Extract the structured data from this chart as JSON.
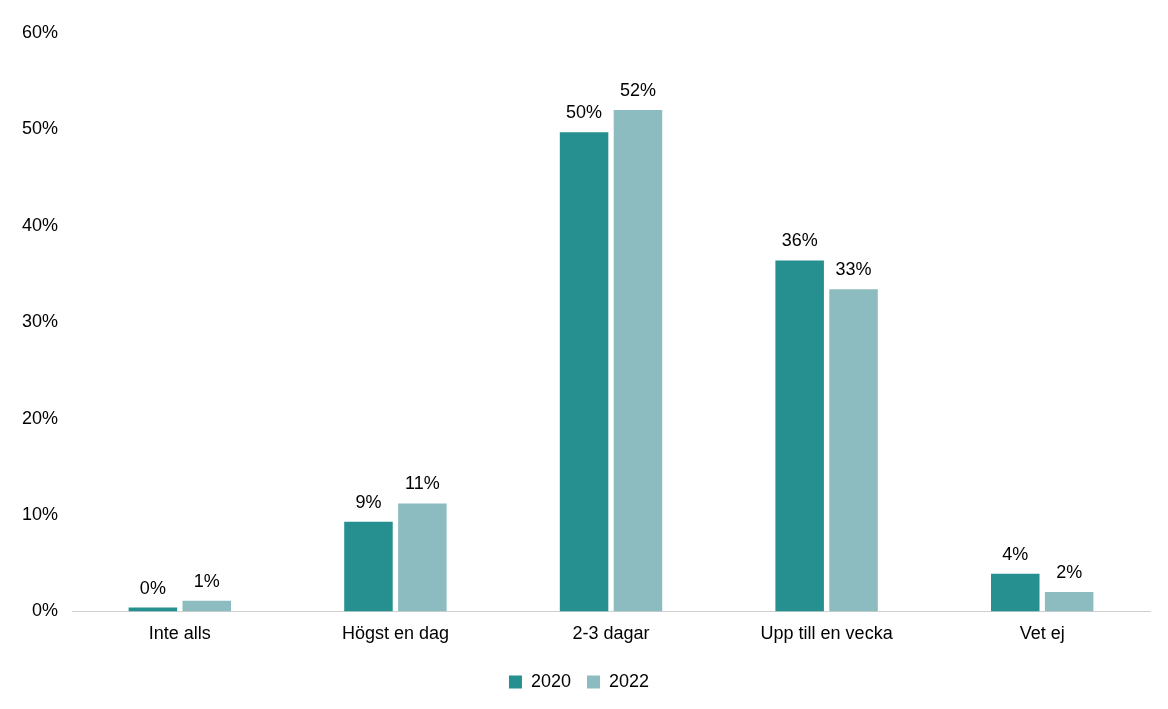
{
  "chart_data": {
    "type": "bar",
    "categories": [
      "Inte alls",
      "Högst en dag",
      "2-3 dagar",
      "Upp till en vecka",
      "Vet ej"
    ],
    "series": [
      {
        "name": "2020",
        "color": "#268f8f",
        "values": [
          0.4,
          9.3,
          49.7,
          36.4,
          3.9
        ],
        "value_labels": [
          "0%",
          "9%",
          "50%",
          "36%",
          "4%"
        ]
      },
      {
        "name": "2022",
        "color": "#8cbcbf",
        "values": [
          1.1,
          11.2,
          52.0,
          33.4,
          2.0
        ],
        "value_labels": [
          "1%",
          "11%",
          "52%",
          "33%",
          "2%"
        ]
      }
    ],
    "ylim": [
      0,
      60
    ],
    "yticks": [
      {
        "value": 0,
        "label": "0%"
      },
      {
        "value": 10,
        "label": "10%"
      },
      {
        "value": 20,
        "label": "20%"
      },
      {
        "value": 30,
        "label": "30%"
      },
      {
        "value": 40,
        "label": "40%"
      },
      {
        "value": 50,
        "label": "50%"
      },
      {
        "value": 60,
        "label": "60%"
      }
    ],
    "grid": false,
    "legend": "bottom"
  }
}
